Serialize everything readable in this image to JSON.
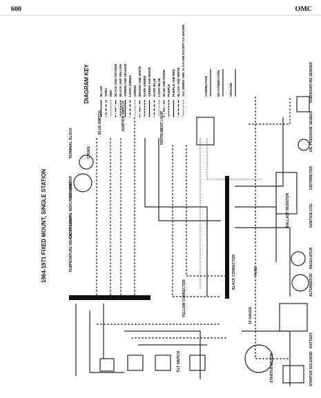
{
  "header": {
    "page": "600",
    "brand": "OMC"
  },
  "title": "1964-1971 FIXED MOUNT, SINGLE STATION",
  "key": {
    "title": "DIAGRAM KEY",
    "entries": [
      "BLACK",
      "GREY",
      "RED",
      "BLACK AND ORANGE",
      "BLACK AND YELLOW",
      "GREEN AND ORANGE",
      "LIGHT GREEN",
      "GREEN",
      "BROWN AND WHITE",
      "DARK GREEN",
      "GREEN AND WHITE",
      "DARK BLUE",
      "LIGHT BLUE",
      "BLUE AND WHITE",
      "PURPLE",
      "PURPLE AND RED",
      "BLACK AND WHITE",
      "ALL WIRES ARE 16 GAUGE EXCEPT AS SHOWN"
    ],
    "symbols": [
      "CONNECTION",
      "NO CONNECTION",
      "GROUND"
    ]
  },
  "components": [
    "TEMPERATURE SENDER",
    "OIL PRESSURE SENDER",
    "BATTERY",
    "ALTERNATOR",
    "REGULATOR",
    "IGNITION COIL",
    "BALLAST RESISTOR",
    "DISTRIBUTOR",
    "STARTER MOTOR",
    "STARTER SOLENOID",
    "TACHOMETER",
    "TEMPERATURE INDICATOR LIGHT",
    "OIL PRESSURE INDICATOR LIGHT",
    "YELLOW CONNECTOR",
    "BLACK CONNECTOR",
    "10 GAUGE",
    "FUSE",
    "IGNITION SWITCH",
    "BLUE SWITCH",
    "INSTRUMENT LIGHT",
    "TERMINAL BLOCK",
    "CHOKE",
    "TILT SWITCH"
  ]
}
